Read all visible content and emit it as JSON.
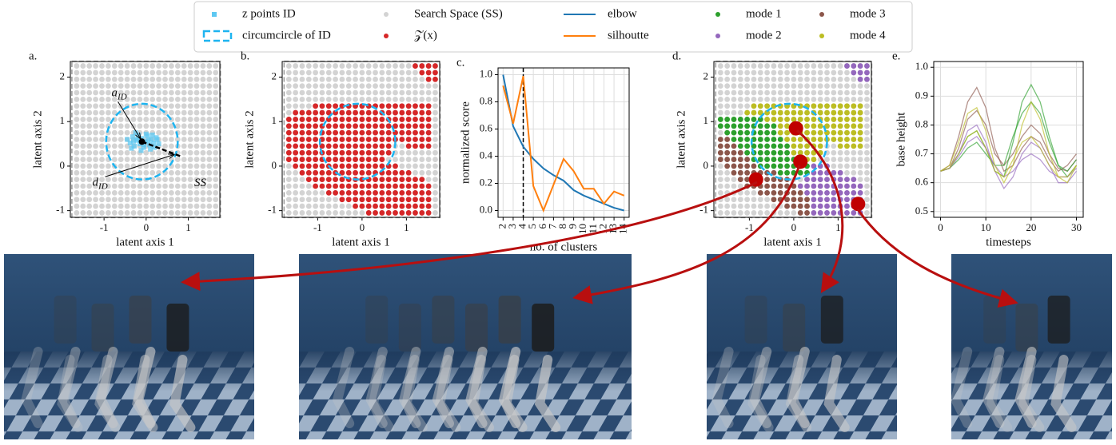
{
  "chart_data": [
    {
      "type": "scatter",
      "panel": "a.",
      "xlabel": "latent axis 1",
      "ylabel": "latent axis 2",
      "xlim": [
        -1.8,
        1.75
      ],
      "ylim": [
        -1.15,
        2.35
      ],
      "xticks": [
        -1,
        0,
        1
      ],
      "yticks": [
        -1,
        0,
        1,
        2
      ],
      "search_space": {
        "name": "Search Space (SS)",
        "color": "#d3d3d3",
        "x": [
          -1.65,
          -1.5,
          -1.35,
          -1.2,
          -1.05,
          -0.9,
          -0.75,
          -0.6,
          -0.45,
          -0.3,
          -0.15,
          0,
          0.15,
          0.3,
          0.45,
          0.6,
          0.75,
          0.9,
          1.05,
          1.2,
          1.35,
          1.5,
          1.65
        ],
        "y": [
          -1.05,
          -0.9,
          -0.75,
          -0.6,
          -0.45,
          -0.3,
          -0.15,
          0,
          0.15,
          0.3,
          0.45,
          0.6,
          0.75,
          0.9,
          1.05,
          1.2,
          1.35,
          1.5,
          1.65,
          1.8,
          1.95,
          2.1,
          2.25
        ]
      },
      "id_points": {
        "name": "z points ID",
        "color": "#5ec8f2",
        "x": [
          -0.45,
          -0.38,
          -0.32,
          -0.28,
          -0.22,
          -0.18,
          -0.15,
          -0.1,
          -0.06,
          -0.02,
          0.03,
          0.08,
          0.12,
          0.18,
          0.24,
          0.3,
          -0.35,
          -0.25,
          -0.12,
          0.0,
          0.1,
          0.2,
          -0.2,
          -0.05,
          0.15,
          -0.3,
          0.05,
          0.26
        ],
        "y": [
          0.6,
          0.52,
          0.66,
          0.45,
          0.58,
          0.7,
          0.5,
          0.62,
          0.42,
          0.55,
          0.68,
          0.48,
          0.6,
          0.52,
          0.64,
          0.5,
          0.4,
          0.75,
          0.35,
          0.72,
          0.38,
          0.42,
          0.62,
          0.48,
          0.7,
          0.56,
          0.58,
          0.6
        ]
      },
      "circle": {
        "name": "circumcircle of ID",
        "color": "#1eb4f0",
        "center": [
          -0.1,
          0.55
        ],
        "radius": 0.85
      },
      "annotations": [
        {
          "text": "a",
          "sub": "ID"
        },
        {
          "text": "d",
          "sub": "ID"
        },
        {
          "text": "SS"
        }
      ]
    },
    {
      "type": "scatter",
      "panel": "b.",
      "xlabel": "latent axis 1",
      "ylabel": "latent axis 2",
      "xlim": [
        -1.8,
        1.75
      ],
      "ylim": [
        -1.15,
        2.35
      ],
      "xticks": [
        -1,
        0,
        1
      ],
      "yticks": [
        -1,
        0,
        1,
        2
      ],
      "search_space": {
        "color": "#d3d3d3",
        "x": [
          -1.65,
          -1.5,
          -1.35,
          -1.2,
          -1.05,
          -0.9,
          -0.75,
          -0.6,
          -0.45,
          -0.3,
          -0.15,
          0,
          0.15,
          0.3,
          0.45,
          0.6,
          0.75,
          0.9,
          1.05,
          1.2,
          1.35,
          1.5,
          1.65
        ],
        "y": [
          -1.05,
          -0.9,
          -0.75,
          -0.6,
          -0.45,
          -0.3,
          -0.15,
          0,
          0.15,
          0.3,
          0.45,
          0.6,
          0.75,
          0.9,
          1.05,
          1.2,
          1.35,
          1.5,
          1.65,
          1.8,
          1.95,
          2.1,
          2.25
        ]
      },
      "circle": {
        "color": "#1eb4f0",
        "center": [
          -0.1,
          0.55
        ],
        "radius": 0.85
      },
      "series": [
        {
          "name": "𝒵(x)",
          "color": "#d62728",
          "spans": [
            [
              2.25,
              1.2,
              1.65
            ],
            [
              2.1,
              1.35,
              1.65
            ],
            [
              1.95,
              1.5,
              1.65
            ],
            [
              1.35,
              -1.05,
              1.5
            ],
            [
              1.2,
              -1.5,
              1.5
            ],
            [
              1.05,
              -1.65,
              1.5
            ],
            [
              0.9,
              -1.65,
              1.5
            ],
            [
              0.75,
              -1.65,
              1.5
            ],
            [
              0.6,
              -1.65,
              1.5
            ],
            [
              0.45,
              -1.65,
              0.6
            ],
            [
              0.45,
              1.05,
              1.5
            ],
            [
              0.3,
              -1.65,
              0.6
            ],
            [
              0.15,
              -1.65,
              0.45
            ],
            [
              0,
              -1.5,
              0.75
            ],
            [
              -0.15,
              -1.35,
              1.05
            ],
            [
              -0.3,
              -1.2,
              1.35
            ],
            [
              -0.45,
              -1.05,
              1.5
            ],
            [
              -0.6,
              -0.75,
              1.5
            ],
            [
              -0.75,
              -0.45,
              1.5
            ],
            [
              -0.9,
              -0.15,
              1.5
            ],
            [
              -1.05,
              0.15,
              1.5
            ]
          ]
        }
      ]
    },
    {
      "type": "line",
      "panel": "c.",
      "xlabel": "no. of clusters",
      "ylabel": "normalized score",
      "x": [
        2,
        3,
        4,
        5,
        6,
        7,
        8,
        9,
        10,
        11,
        12,
        13,
        14
      ],
      "xlim": [
        1.5,
        14.5
      ],
      "xticks": [
        2,
        3,
        4,
        5,
        6,
        7,
        8,
        9,
        10,
        11,
        12,
        13,
        14
      ],
      "ylim": [
        -0.05,
        1.05
      ],
      "yticks": [
        {
          "value": 0,
          "label": "0.0"
        },
        0.2,
        0.4,
        0.6,
        0.8,
        {
          "value": 1,
          "label": "1.0"
        }
      ],
      "grid": true,
      "vline": 4,
      "series": [
        {
          "name": "elbow",
          "color": "#1f77b4",
          "values": [
            1.0,
            0.62,
            0.47,
            0.38,
            0.31,
            0.26,
            0.22,
            0.15,
            0.11,
            0.08,
            0.05,
            0.02,
            0.0
          ]
        },
        {
          "name": "silhoutte",
          "color": "#ff7f0e",
          "values": [
            0.92,
            0.64,
            0.99,
            0.18,
            0.0,
            0.19,
            0.38,
            0.29,
            0.16,
            0.16,
            0.05,
            0.14,
            0.11
          ]
        }
      ]
    },
    {
      "type": "scatter",
      "panel": "d.",
      "xlabel": "latent axis 1",
      "ylabel": "latent axis 2",
      "xlim": [
        -1.8,
        1.75
      ],
      "ylim": [
        -1.15,
        2.35
      ],
      "xticks": [
        -1,
        0,
        1
      ],
      "yticks": [
        -1,
        0,
        1,
        2
      ],
      "search_space": {
        "color": "#d3d3d3",
        "x": [
          -1.65,
          -1.5,
          -1.35,
          -1.2,
          -1.05,
          -0.9,
          -0.75,
          -0.6,
          -0.45,
          -0.3,
          -0.15,
          0,
          0.15,
          0.3,
          0.45,
          0.6,
          0.75,
          0.9,
          1.05,
          1.2,
          1.35,
          1.5,
          1.65
        ],
        "y": [
          -1.05,
          -0.9,
          -0.75,
          -0.6,
          -0.45,
          -0.3,
          -0.15,
          0,
          0.15,
          0.3,
          0.45,
          0.6,
          0.75,
          0.9,
          1.05,
          1.2,
          1.35,
          1.5,
          1.65,
          1.8,
          1.95,
          2.1,
          2.25
        ]
      },
      "circle": {
        "color": "#1eb4f0",
        "center": [
          -0.1,
          0.55
        ],
        "radius": 0.85
      },
      "series": [
        {
          "name": "mode 1",
          "color": "#2ca02c",
          "spans": [
            [
              1.05,
              -1.65,
              -0.75
            ],
            [
              0.9,
              -1.65,
              -0.45
            ],
            [
              0.75,
              -1.5,
              -0.45
            ],
            [
              0.6,
              -1.35,
              -0.3
            ],
            [
              0.45,
              -1.2,
              -0.15
            ],
            [
              0.3,
              -1.05,
              -0.15
            ],
            [
              0.15,
              -0.9,
              0
            ],
            [
              0,
              -0.75,
              0.3
            ],
            [
              -0.15,
              -0.3,
              0.3
            ]
          ]
        },
        {
          "name": "mode 2",
          "color": "#9467bd",
          "spans": [
            [
              2.25,
              1.2,
              1.65
            ],
            [
              2.1,
              1.35,
              1.65
            ],
            [
              1.95,
              1.5,
              1.65
            ],
            [
              0,
              0.45,
              0.75
            ],
            [
              -0.15,
              0.45,
              1.05
            ],
            [
              -0.3,
              0.3,
              1.35
            ],
            [
              -0.45,
              0.15,
              1.5
            ],
            [
              -0.6,
              0.3,
              1.5
            ],
            [
              -0.75,
              0.45,
              1.5
            ],
            [
              -0.9,
              0.45,
              1.5
            ],
            [
              -1.05,
              0.45,
              1.5
            ]
          ]
        },
        {
          "name": "mode 3",
          "color": "#8c564b",
          "spans": [
            [
              0.6,
              -1.65,
              -1.5
            ],
            [
              0.45,
              -1.65,
              -1.35
            ],
            [
              0.3,
              -1.65,
              -1.2
            ],
            [
              0.15,
              -1.65,
              -1.05
            ],
            [
              0,
              -1.5,
              -0.9
            ],
            [
              -0.15,
              -1.35,
              -0.45
            ],
            [
              -0.3,
              -1.2,
              -0.15
            ],
            [
              -0.45,
              -1.05,
              0
            ],
            [
              -0.6,
              -0.75,
              0.15
            ],
            [
              -0.75,
              -0.45,
              0.3
            ],
            [
              -0.9,
              -0.15,
              0.3
            ],
            [
              -1.05,
              0.15,
              0.3
            ]
          ]
        },
        {
          "name": "mode 4",
          "color": "#bcbd22",
          "spans": [
            [
              1.35,
              -0.9,
              1.5
            ],
            [
              1.2,
              -1.05,
              1.5
            ],
            [
              1.05,
              -0.6,
              1.5
            ],
            [
              0.9,
              -0.3,
              1.5
            ],
            [
              0.75,
              -0.3,
              1.5
            ],
            [
              0.6,
              -0.15,
              1.5
            ],
            [
              0.45,
              0,
              0.6
            ],
            [
              0.45,
              1.05,
              1.5
            ],
            [
              0.3,
              0,
              0.6
            ],
            [
              0.15,
              0.15,
              0.45
            ]
          ]
        }
      ],
      "highlights": {
        "color": "#c00000",
        "x": [
          -0.85,
          0.15,
          0.05,
          1.45
        ],
        "y": [
          -0.3,
          0.1,
          0.85,
          -0.85
        ]
      }
    },
    {
      "type": "line",
      "panel": "e.",
      "xlabel": "timesteps",
      "ylabel": "base height",
      "x": [
        0,
        2,
        4,
        6,
        8,
        10,
        12,
        14,
        16,
        18,
        20,
        22,
        24,
        26,
        28,
        30
      ],
      "xlim": [
        -1.5,
        31.5
      ],
      "xticks": [
        0,
        10,
        20,
        30
      ],
      "ylim": [
        0.48,
        1.02
      ],
      "yticks": [
        0.5,
        0.6,
        0.7,
        0.8,
        0.9,
        {
          "value": 1,
          "label": "1.0"
        }
      ],
      "grid": true,
      "series": [
        {
          "color": "#8c564b",
          "values": [
            0.64,
            0.66,
            0.76,
            0.88,
            0.93,
            0.86,
            0.72,
            0.64,
            0.66,
            0.72,
            0.76,
            0.74,
            0.68,
            0.64,
            0.66,
            0.7
          ]
        },
        {
          "color": "#8c564b",
          "values": [
            0.64,
            0.65,
            0.72,
            0.82,
            0.85,
            0.8,
            0.7,
            0.66,
            0.7,
            0.76,
            0.8,
            0.77,
            0.7,
            0.65,
            0.64,
            0.68
          ]
        },
        {
          "color": "#2ca02c",
          "values": [
            0.64,
            0.65,
            0.7,
            0.76,
            0.78,
            0.72,
            0.64,
            0.62,
            0.74,
            0.88,
            0.94,
            0.88,
            0.76,
            0.66,
            0.62,
            0.66
          ]
        },
        {
          "color": "#2ca02c",
          "values": [
            0.64,
            0.65,
            0.68,
            0.72,
            0.74,
            0.7,
            0.66,
            0.66,
            0.76,
            0.84,
            0.88,
            0.84,
            0.74,
            0.66,
            0.64,
            0.68
          ]
        },
        {
          "color": "#9467bd",
          "values": [
            0.64,
            0.65,
            0.7,
            0.78,
            0.8,
            0.74,
            0.64,
            0.58,
            0.62,
            0.7,
            0.74,
            0.72,
            0.66,
            0.6,
            0.6,
            0.64
          ]
        },
        {
          "color": "#9467bd",
          "values": [
            0.64,
            0.65,
            0.69,
            0.74,
            0.76,
            0.72,
            0.66,
            0.62,
            0.64,
            0.68,
            0.7,
            0.68,
            0.64,
            0.62,
            0.62,
            0.65
          ]
        },
        {
          "color": "#bcbd22",
          "values": [
            0.64,
            0.66,
            0.74,
            0.84,
            0.86,
            0.78,
            0.66,
            0.6,
            0.66,
            0.8,
            0.88,
            0.82,
            0.7,
            0.62,
            0.6,
            0.66
          ]
        },
        {
          "color": "#bcbd22",
          "values": [
            0.64,
            0.65,
            0.7,
            0.76,
            0.78,
            0.72,
            0.64,
            0.62,
            0.68,
            0.74,
            0.76,
            0.72,
            0.66,
            0.62,
            0.62,
            0.66
          ]
        }
      ]
    }
  ]
}
